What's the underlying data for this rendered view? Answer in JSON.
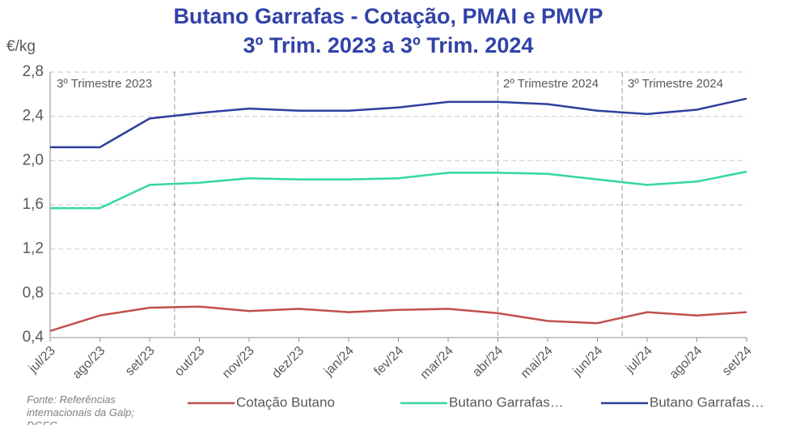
{
  "chart_data": {
    "type": "line",
    "title": "Butano Garrafas - Cotação, PMAI e PMVP",
    "subtitle": "3º Trim. 2023 a 3º Trim. 2024",
    "y_label": "€/kg",
    "categories": [
      "jul/23",
      "ago/23",
      "set/23",
      "out/23",
      "nov/23",
      "dez/23",
      "jan/24",
      "fev/24",
      "mar/24",
      "abr/24",
      "mai/24",
      "jun/24",
      "jul/24",
      "ago/24",
      "set/24"
    ],
    "series": [
      {
        "name": "Cotação Butano",
        "color": "#c0504d",
        "values": [
          0.46,
          0.6,
          0.67,
          0.68,
          0.64,
          0.66,
          0.63,
          0.65,
          0.66,
          0.62,
          0.55,
          0.53,
          0.63,
          0.6,
          0.63
        ]
      },
      {
        "name": "Butano Garrafas…",
        "color": "#33d6a6",
        "values": [
          1.57,
          1.57,
          1.78,
          1.8,
          1.84,
          1.83,
          1.83,
          1.84,
          1.89,
          1.89,
          1.88,
          1.83,
          1.78,
          1.81,
          1.9
        ]
      },
      {
        "name": "Butano Garrafas…",
        "color": "#2e3f9e",
        "values": [
          2.12,
          2.12,
          2.38,
          2.43,
          2.47,
          2.45,
          2.45,
          2.48,
          2.53,
          2.53,
          2.51,
          2.45,
          2.42,
          2.46,
          2.56
        ]
      }
    ],
    "ylim": [
      0.4,
      2.8
    ],
    "yticks": [
      {
        "value": 0.4,
        "label": "0,4"
      },
      {
        "value": 0.8,
        "label": "0,8"
      },
      {
        "value": 1.2,
        "label": "1,2"
      },
      {
        "value": 1.6,
        "label": "1,6"
      },
      {
        "value": 2.0,
        "label": "2,0"
      },
      {
        "value": 2.4,
        "label": "2,4"
      },
      {
        "value": 2.8,
        "label": "2,8"
      }
    ],
    "grid": true,
    "annotations": [
      "3º Trimestre 2023",
      "2º Trimestre 2024",
      "3º Trimestre 2024"
    ],
    "source": "Fonte: Referências internacionais da Galp; DGEG"
  }
}
